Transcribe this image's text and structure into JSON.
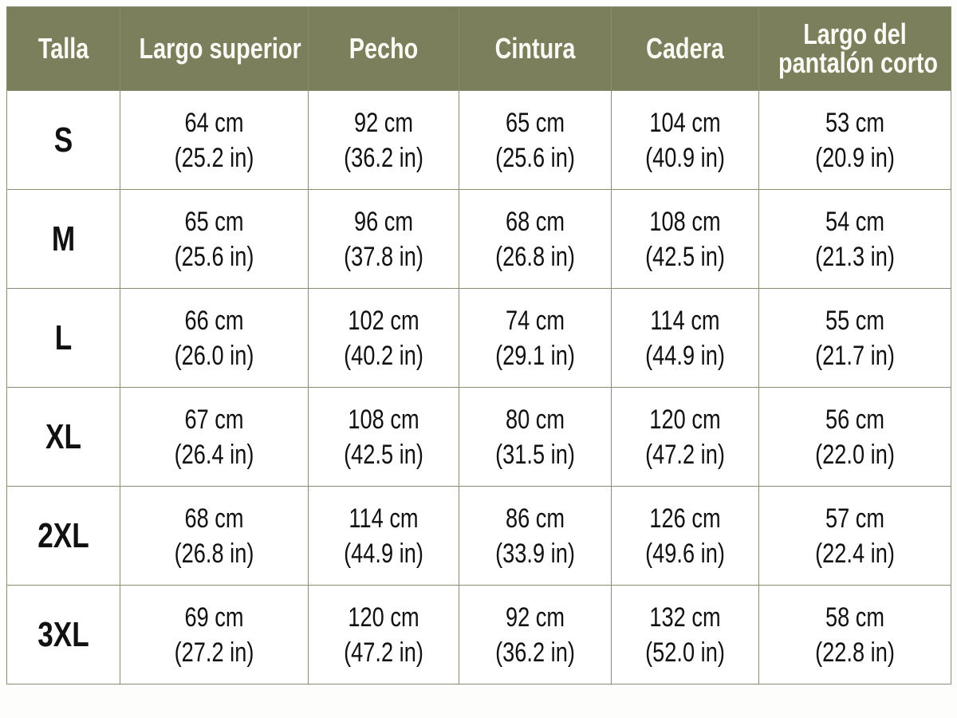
{
  "table": {
    "header": [
      "Talla",
      "Largo superior",
      "Pecho",
      "Cintura",
      "Cadera",
      [
        "Largo del",
        "pantalón corto"
      ]
    ],
    "rows": [
      [
        "S",
        [
          "64 cm",
          "(25.2 in)"
        ],
        [
          "92 cm",
          "(36.2 in)"
        ],
        [
          "65 cm",
          "(25.6 in)"
        ],
        [
          "104 cm",
          "(40.9 in)"
        ],
        [
          "53 cm",
          "(20.9 in)"
        ]
      ],
      [
        "M",
        [
          "65 cm",
          "(25.6 in)"
        ],
        [
          "96 cm",
          "(37.8 in)"
        ],
        [
          "68 cm",
          "(26.8 in)"
        ],
        [
          "108 cm",
          "(42.5 in)"
        ],
        [
          "54 cm",
          "(21.3 in)"
        ]
      ],
      [
        "L",
        [
          "66 cm",
          "(26.0 in)"
        ],
        [
          "102 cm",
          "(40.2 in)"
        ],
        [
          "74 cm",
          "(29.1 in)"
        ],
        [
          "114 cm",
          "(44.9 in)"
        ],
        [
          "55 cm",
          "(21.7 in)"
        ]
      ],
      [
        "XL",
        [
          "67 cm",
          "(26.4 in)"
        ],
        [
          "108 cm",
          "(42.5 in)"
        ],
        [
          "80 cm",
          "(31.5 in)"
        ],
        [
          "120 cm",
          "(47.2 in)"
        ],
        [
          "56 cm",
          "(22.0 in)"
        ]
      ],
      [
        "2XL",
        [
          "68 cm",
          "(26.8 in)"
        ],
        [
          "114 cm",
          "(44.9 in)"
        ],
        [
          "86 cm",
          "(33.9 in)"
        ],
        [
          "126 cm",
          "(49.6 in)"
        ],
        [
          "57 cm",
          "(22.4 in)"
        ]
      ],
      [
        "3XL",
        [
          "69 cm",
          "(27.2 in)"
        ],
        [
          "120 cm",
          "(47.2 in)"
        ],
        [
          "92 cm",
          "(36.2 in)"
        ],
        [
          "132 cm",
          "(52.0 in)"
        ],
        [
          "58 cm",
          "(22.8 in)"
        ]
      ]
    ]
  }
}
